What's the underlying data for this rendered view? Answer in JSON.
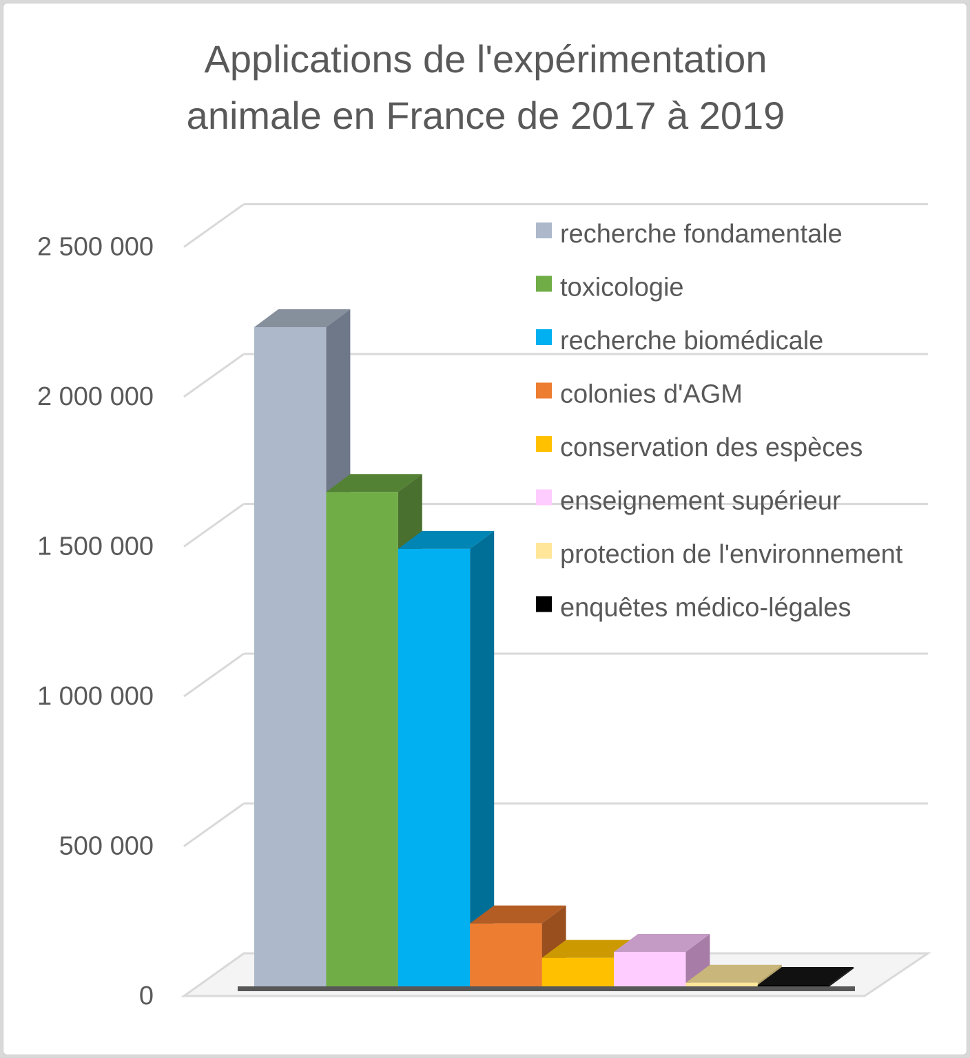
{
  "chart_data": {
    "type": "bar",
    "title_lines": [
      "Applications de l'expérimentation",
      "animale en France de 2017 à 2019"
    ],
    "xlabel": "",
    "ylabel": "",
    "ylim": [
      0,
      2500000
    ],
    "yticks": [
      0,
      500000,
      1000000,
      1500000,
      2000000,
      2500000
    ],
    "ytick_labels": [
      "0",
      "500 000",
      "1 000 000",
      "1 500 000",
      "2 000 000",
      "2 500 000"
    ],
    "grid": true,
    "three_d": true,
    "legend_position": "top-right",
    "categories": [
      "recherche fondamentale",
      "toxicologie",
      "recherche biomédicale",
      "colonies d'AGM",
      "conservation des espèces",
      "enseignement supérieur",
      "protection de l'environnement",
      "enquêtes médico-légales"
    ],
    "values": [
      2200000,
      1650000,
      1460000,
      210000,
      95000,
      115000,
      12000,
      3000
    ],
    "colors": [
      "#adb9ca",
      "#70ad47",
      "#00b0f0",
      "#ed7d31",
      "#ffc000",
      "#ffccff",
      "#ffe699",
      "#000000"
    ],
    "side_colors": [
      "#6e7888",
      "#4a7030",
      "#006f97",
      "#9a4f1e",
      "#b38600",
      "#a77da7",
      "#b3a16a",
      "#1a1a1a"
    ],
    "top_colors": [
      "#868f9c",
      "#548235",
      "#0085b5",
      "#b35d24",
      "#cc9a00",
      "#c49bc4",
      "#c9b67a",
      "#111111"
    ]
  }
}
